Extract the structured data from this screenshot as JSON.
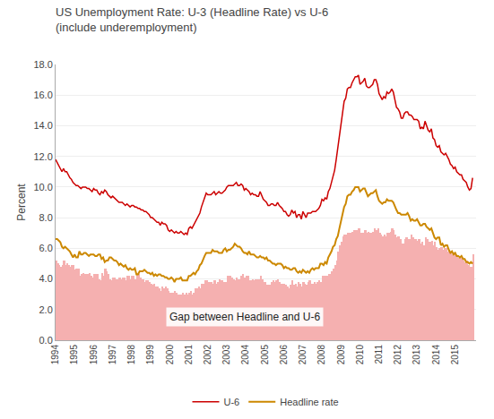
{
  "chart_data": {
    "type": "line",
    "title": "US Unemployment Rate: U-3 (Headline Rate) vs U-6",
    "subtitle": "(include underemployment)",
    "y_label": "Percent",
    "annotation": "Gap between Headline and U-6",
    "background_color": "#ffffff",
    "grid": "y",
    "legend": "bottom",
    "xlim": [
      1994,
      2016.1
    ],
    "xticks": [
      1994,
      1995,
      1996,
      1997,
      1998,
      1999,
      2000,
      2001,
      2002,
      2003,
      2004,
      2005,
      2006,
      2007,
      2008,
      2009,
      2010,
      2011,
      2012,
      2013,
      2014,
      2015
    ],
    "ylim": [
      0.0,
      18.0
    ],
    "yticks": [
      {
        "value": 0.0,
        "label": "0.0"
      },
      {
        "value": 2.0,
        "label": "2.0"
      },
      {
        "value": 4.0,
        "label": "4.0"
      },
      {
        "value": 6.0,
        "label": "6.0"
      },
      {
        "value": 8.0,
        "label": "8.0"
      },
      {
        "value": 10.0,
        "label": "10.0"
      },
      {
        "value": 12.0,
        "label": "12.0"
      },
      {
        "value": 14.0,
        "label": "14.0"
      },
      {
        "value": 16.0,
        "label": "16.0"
      },
      {
        "value": 18.0,
        "label": "18.0"
      }
    ],
    "x": [
      1994,
      1994.083333,
      1994.166667,
      1994.25,
      1994.333333,
      1994.416667,
      1994.5,
      1994.583333,
      1994.666667,
      1994.75,
      1994.833333,
      1994.916667,
      1995,
      1995.083333,
      1995.166667,
      1995.25,
      1995.333333,
      1995.416667,
      1995.5,
      1995.583333,
      1995.666667,
      1995.75,
      1995.833333,
      1995.916667,
      1996,
      1996.083333,
      1996.166667,
      1996.25,
      1996.333333,
      1996.416667,
      1996.5,
      1996.583333,
      1996.666667,
      1996.75,
      1996.833333,
      1996.916667,
      1997,
      1997.083333,
      1997.166667,
      1997.25,
      1997.333333,
      1997.416667,
      1997.5,
      1997.583333,
      1997.666667,
      1997.75,
      1997.833333,
      1997.916667,
      1998,
      1998.083333,
      1998.166667,
      1998.25,
      1998.333333,
      1998.416667,
      1998.5,
      1998.583333,
      1998.666667,
      1998.75,
      1998.833333,
      1998.916667,
      1999,
      1999.083333,
      1999.166667,
      1999.25,
      1999.333333,
      1999.416667,
      1999.5,
      1999.583333,
      1999.666667,
      1999.75,
      1999.833333,
      1999.916667,
      2000,
      2000.083333,
      2000.166667,
      2000.25,
      2000.333333,
      2000.416667,
      2000.5,
      2000.583333,
      2000.666667,
      2000.75,
      2000.833333,
      2000.916667,
      2001,
      2001.083333,
      2001.166667,
      2001.25,
      2001.333333,
      2001.416667,
      2001.5,
      2001.583333,
      2001.666667,
      2001.75,
      2001.833333,
      2001.916667,
      2002,
      2002.083333,
      2002.166667,
      2002.25,
      2002.333333,
      2002.416667,
      2002.5,
      2002.583333,
      2002.666667,
      2002.75,
      2002.833333,
      2002.916667,
      2003,
      2003.083333,
      2003.166667,
      2003.25,
      2003.333333,
      2003.416667,
      2003.5,
      2003.583333,
      2003.666667,
      2003.75,
      2003.833333,
      2003.916667,
      2004,
      2004.083333,
      2004.166667,
      2004.25,
      2004.333333,
      2004.416667,
      2004.5,
      2004.583333,
      2004.666667,
      2004.75,
      2004.833333,
      2004.916667,
      2005,
      2005.083333,
      2005.166667,
      2005.25,
      2005.333333,
      2005.416667,
      2005.5,
      2005.583333,
      2005.666667,
      2005.75,
      2005.833333,
      2005.916667,
      2006,
      2006.083333,
      2006.166667,
      2006.25,
      2006.333333,
      2006.416667,
      2006.5,
      2006.583333,
      2006.666667,
      2006.75,
      2006.833333,
      2006.916667,
      2007,
      2007.083333,
      2007.166667,
      2007.25,
      2007.333333,
      2007.416667,
      2007.5,
      2007.583333,
      2007.666667,
      2007.75,
      2007.833333,
      2007.916667,
      2008,
      2008.083333,
      2008.166667,
      2008.25,
      2008.333333,
      2008.416667,
      2008.5,
      2008.583333,
      2008.666667,
      2008.75,
      2008.833333,
      2008.916667,
      2009,
      2009.083333,
      2009.166667,
      2009.25,
      2009.333333,
      2009.416667,
      2009.5,
      2009.583333,
      2009.666667,
      2009.75,
      2009.833333,
      2009.916667,
      2010,
      2010.083333,
      2010.166667,
      2010.25,
      2010.333333,
      2010.416667,
      2010.5,
      2010.583333,
      2010.666667,
      2010.75,
      2010.833333,
      2010.916667,
      2011,
      2011.083333,
      2011.166667,
      2011.25,
      2011.333333,
      2011.416667,
      2011.5,
      2011.583333,
      2011.666667,
      2011.75,
      2011.833333,
      2011.916667,
      2012,
      2012.083333,
      2012.166667,
      2012.25,
      2012.333333,
      2012.416667,
      2012.5,
      2012.583333,
      2012.666667,
      2012.75,
      2012.833333,
      2012.916667,
      2013,
      2013.083333,
      2013.166667,
      2013.25,
      2013.333333,
      2013.416667,
      2013.5,
      2013.583333,
      2013.666667,
      2013.75,
      2013.833333,
      2013.916667,
      2014,
      2014.083333,
      2014.166667,
      2014.25,
      2014.333333,
      2014.416667,
      2014.5,
      2014.583333,
      2014.666667,
      2014.75,
      2014.833333,
      2014.916667,
      2015,
      2015.083333,
      2015.166667,
      2015.25,
      2015.333333,
      2015.416667,
      2015.5,
      2015.583333,
      2015.666667,
      2015.75,
      2015.833333,
      2015.916667
    ],
    "series": [
      {
        "type": "bar",
        "color": "#f5b0b0",
        "values": [
          5.2,
          5.0,
          4.9,
          4.8,
          4.9,
          5.2,
          4.9,
          5.0,
          4.9,
          4.8,
          4.9,
          4.9,
          4.6,
          4.7,
          4.7,
          4.2,
          4.3,
          4.4,
          4.3,
          4.3,
          4.3,
          4.4,
          4.2,
          4.1,
          4.3,
          4.3,
          4.3,
          4.0,
          3.9,
          4.4,
          4.2,
          4.7,
          4.5,
          4.3,
          4.0,
          3.9,
          4.1,
          4.1,
          4.0,
          4.0,
          4.1,
          4.0,
          4.1,
          4.1,
          3.9,
          4.2,
          4.2,
          4.0,
          4.2,
          4.2,
          4.0,
          4.4,
          4.3,
          4.1,
          4.0,
          4.0,
          3.8,
          3.9,
          3.9,
          3.8,
          3.7,
          3.6,
          3.7,
          3.5,
          3.5,
          3.4,
          3.2,
          3.5,
          3.4,
          3.5,
          3.4,
          3.2,
          3.1,
          3.1,
          3.1,
          3.2,
          3.1,
          3.0,
          3.0,
          3.0,
          3.1,
          3.0,
          3.1,
          3.0,
          3.1,
          3.2,
          3.0,
          3.1,
          3.4,
          3.4,
          3.5,
          3.4,
          3.7,
          3.7,
          3.9,
          3.9,
          3.8,
          3.8,
          3.8,
          3.7,
          3.9,
          3.7,
          3.8,
          4.0,
          3.9,
          3.9,
          3.8,
          3.8,
          4.2,
          4.2,
          4.2,
          4.1,
          4.0,
          3.9,
          4.1,
          4.0,
          4.0,
          4.2,
          4.3,
          4.1,
          4.2,
          4.2,
          3.9,
          3.9,
          4.0,
          3.9,
          4.0,
          4.0,
          4.0,
          4.2,
          4.0,
          3.8,
          3.8,
          3.6,
          3.6,
          3.6,
          3.8,
          3.9,
          3.8,
          3.9,
          4.0,
          3.8,
          3.7,
          3.7,
          3.7,
          3.6,
          3.5,
          3.4,
          3.6,
          3.9,
          3.6,
          3.7,
          3.5,
          3.8,
          3.7,
          3.5,
          3.8,
          3.7,
          3.6,
          3.8,
          3.9,
          3.7,
          3.7,
          3.8,
          3.7,
          3.8,
          3.9,
          3.8,
          4.2,
          4.2,
          4.2,
          4.2,
          4.3,
          4.3,
          4.5,
          4.7,
          4.9,
          5.2,
          5.8,
          6.2,
          6.4,
          6.8,
          6.9,
          6.9,
          7.0,
          7.0,
          7.0,
          7.1,
          7.2,
          7.2,
          7.2,
          7.3,
          7.0,
          7.0,
          7.0,
          7.2,
          7.0,
          7.1,
          7.0,
          7.0,
          7.1,
          7.3,
          7.2,
          7.3,
          7.0,
          6.9,
          6.8,
          6.9,
          6.8,
          7.0,
          7.0,
          7.1,
          7.3,
          7.2,
          6.9,
          6.7,
          6.8,
          6.6,
          6.3,
          6.3,
          6.6,
          6.7,
          6.6,
          6.6,
          6.9,
          6.7,
          6.6,
          6.6,
          6.5,
          6.6,
          6.3,
          6.4,
          6.2,
          6.7,
          6.6,
          6.4,
          6.4,
          6.5,
          6.2,
          6.4,
          6.1,
          5.9,
          6.0,
          6.1,
          5.9,
          6.0,
          6.0,
          5.8,
          5.9,
          5.8,
          5.6,
          5.6,
          5.6,
          5.5,
          5.4,
          5.4,
          5.3,
          5.2,
          5.1,
          5.2,
          4.9,
          4.8,
          4.8,
          5.6
        ]
      },
      {
        "name": "U-6",
        "type": "line",
        "color": "#cc0000",
        "values": [
          11.8,
          11.6,
          11.4,
          11.2,
          11.0,
          11.2,
          11.0,
          11.0,
          10.8,
          10.6,
          10.5,
          10.3,
          10.2,
          10.1,
          10.1,
          10.0,
          9.9,
          10.0,
          10.0,
          10.0,
          9.9,
          9.9,
          9.8,
          9.7,
          9.9,
          9.8,
          9.8,
          9.6,
          9.5,
          9.7,
          9.6,
          9.8,
          9.7,
          9.5,
          9.4,
          9.3,
          9.4,
          9.3,
          9.2,
          9.1,
          9.0,
          9.0,
          9.0,
          8.9,
          8.8,
          8.9,
          8.8,
          8.7,
          8.8,
          8.8,
          8.7,
          8.7,
          8.6,
          8.6,
          8.5,
          8.5,
          8.4,
          8.4,
          8.3,
          8.2,
          8.0,
          8.0,
          7.9,
          7.8,
          7.7,
          7.7,
          7.5,
          7.7,
          7.6,
          7.6,
          7.5,
          7.2,
          7.1,
          7.2,
          7.1,
          7.0,
          7.1,
          7.0,
          7.0,
          7.1,
          7.0,
          6.9,
          7.0,
          6.9,
          7.3,
          7.4,
          7.3,
          7.5,
          7.7,
          7.9,
          8.1,
          8.3,
          8.7,
          9.0,
          9.4,
          9.6,
          9.5,
          9.5,
          9.5,
          9.6,
          9.7,
          9.5,
          9.6,
          9.7,
          9.6,
          9.6,
          9.7,
          9.8,
          10.0,
          10.1,
          10.1,
          10.1,
          10.1,
          10.2,
          10.3,
          10.1,
          10.1,
          10.2,
          10.1,
          9.8,
          9.9,
          9.8,
          9.7,
          9.5,
          9.6,
          9.5,
          9.5,
          9.4,
          9.4,
          9.7,
          9.4,
          9.2,
          9.1,
          9.0,
          8.8,
          8.8,
          8.9,
          8.9,
          8.8,
          8.8,
          9.0,
          8.8,
          8.7,
          8.6,
          8.4,
          8.4,
          8.2,
          8.1,
          8.2,
          8.5,
          8.3,
          8.4,
          8.0,
          8.2,
          8.2,
          7.9,
          8.4,
          8.2,
          8.0,
          8.3,
          8.3,
          8.3,
          8.4,
          8.4,
          8.4,
          8.5,
          8.6,
          8.8,
          9.2,
          9.1,
          9.3,
          9.2,
          9.7,
          9.9,
          10.3,
          10.8,
          11.1,
          11.8,
          12.6,
          13.5,
          14.2,
          15.1,
          15.6,
          15.8,
          16.4,
          16.5,
          16.5,
          16.8,
          17.0,
          17.2,
          17.2,
          17.3,
          16.7,
          16.8,
          16.9,
          17.1,
          16.6,
          16.5,
          16.5,
          16.6,
          16.7,
          17.0,
          17.0,
          16.7,
          16.1,
          15.9,
          15.7,
          15.9,
          15.8,
          16.2,
          16.1,
          16.2,
          16.4,
          16.2,
          15.6,
          15.2,
          15.1,
          14.9,
          14.5,
          14.5,
          14.8,
          14.9,
          14.9,
          14.7,
          14.7,
          14.6,
          14.4,
          14.4,
          14.4,
          14.3,
          13.8,
          13.9,
          13.8,
          14.3,
          14.0,
          13.7,
          13.6,
          13.8,
          13.2,
          13.1,
          12.7,
          12.6,
          12.7,
          12.3,
          12.2,
          12.1,
          12.2,
          12.0,
          11.8,
          11.5,
          11.4,
          11.2,
          11.3,
          11.0,
          10.9,
          10.8,
          10.8,
          10.5,
          10.4,
          10.3,
          10.0,
          9.8,
          9.9,
          10.6
        ]
      },
      {
        "name": "Headline rate",
        "type": "line",
        "color": "#cc8800",
        "values": [
          6.6,
          6.6,
          6.5,
          6.4,
          6.1,
          6.0,
          6.1,
          6.0,
          5.9,
          5.8,
          5.6,
          5.4,
          5.6,
          5.4,
          5.4,
          5.8,
          5.6,
          5.6,
          5.7,
          5.7,
          5.6,
          5.5,
          5.6,
          5.6,
          5.6,
          5.5,
          5.5,
          5.6,
          5.6,
          5.3,
          5.4,
          5.1,
          5.2,
          5.2,
          5.4,
          5.4,
          5.3,
          5.2,
          5.2,
          5.1,
          4.9,
          5.0,
          4.9,
          4.8,
          4.9,
          4.7,
          4.6,
          4.7,
          4.6,
          4.6,
          4.7,
          4.3,
          4.3,
          4.5,
          4.5,
          4.5,
          4.6,
          4.5,
          4.4,
          4.4,
          4.3,
          4.4,
          4.2,
          4.3,
          4.2,
          4.3,
          4.3,
          4.2,
          4.2,
          4.1,
          4.1,
          4.0,
          4.0,
          4.1,
          4.0,
          3.8,
          4.0,
          4.0,
          4.0,
          4.1,
          3.9,
          3.9,
          3.9,
          3.9,
          4.2,
          4.2,
          4.3,
          4.4,
          4.3,
          4.5,
          4.6,
          4.9,
          5.0,
          5.3,
          5.5,
          5.7,
          5.7,
          5.7,
          5.7,
          5.9,
          5.8,
          5.8,
          5.8,
          5.7,
          5.7,
          5.7,
          5.9,
          6.0,
          5.8,
          5.9,
          5.9,
          6.0,
          6.1,
          6.3,
          6.2,
          6.1,
          6.1,
          6.0,
          5.8,
          5.7,
          5.7,
          5.6,
          5.8,
          5.6,
          5.6,
          5.6,
          5.5,
          5.4,
          5.4,
          5.5,
          5.4,
          5.4,
          5.3,
          5.4,
          5.2,
          5.2,
          5.1,
          5.0,
          5.0,
          4.9,
          5.0,
          5.0,
          5.0,
          4.9,
          4.7,
          4.8,
          4.7,
          4.7,
          4.6,
          4.6,
          4.7,
          4.7,
          4.5,
          4.4,
          4.5,
          4.4,
          4.6,
          4.5,
          4.4,
          4.5,
          4.4,
          4.6,
          4.7,
          4.6,
          4.7,
          4.7,
          4.7,
          5.0,
          5.0,
          4.9,
          5.1,
          5.0,
          5.4,
          5.6,
          5.8,
          6.1,
          6.2,
          6.6,
          6.8,
          7.3,
          7.8,
          8.3,
          8.7,
          8.9,
          9.4,
          9.5,
          9.5,
          9.7,
          9.8,
          10.0,
          10.0,
          10.0,
          9.7,
          9.8,
          9.9,
          9.9,
          9.6,
          9.4,
          9.5,
          9.6,
          9.6,
          9.7,
          9.8,
          9.4,
          9.1,
          9.0,
          8.9,
          9.0,
          9.0,
          9.2,
          9.1,
          9.1,
          9.1,
          9.0,
          8.7,
          8.5,
          8.3,
          8.3,
          8.2,
          8.2,
          8.2,
          8.2,
          8.3,
          8.1,
          7.8,
          7.9,
          7.8,
          7.8,
          7.9,
          7.7,
          7.5,
          7.5,
          7.6,
          7.6,
          7.4,
          7.3,
          7.2,
          7.3,
          7.0,
          6.7,
          6.6,
          6.7,
          6.7,
          6.2,
          6.3,
          6.1,
          6.2,
          6.2,
          5.9,
          5.7,
          5.8,
          5.6,
          5.7,
          5.5,
          5.5,
          5.4,
          5.5,
          5.3,
          5.3,
          5.1,
          5.1,
          5.0,
          5.1,
          5.0
        ]
      }
    ]
  }
}
